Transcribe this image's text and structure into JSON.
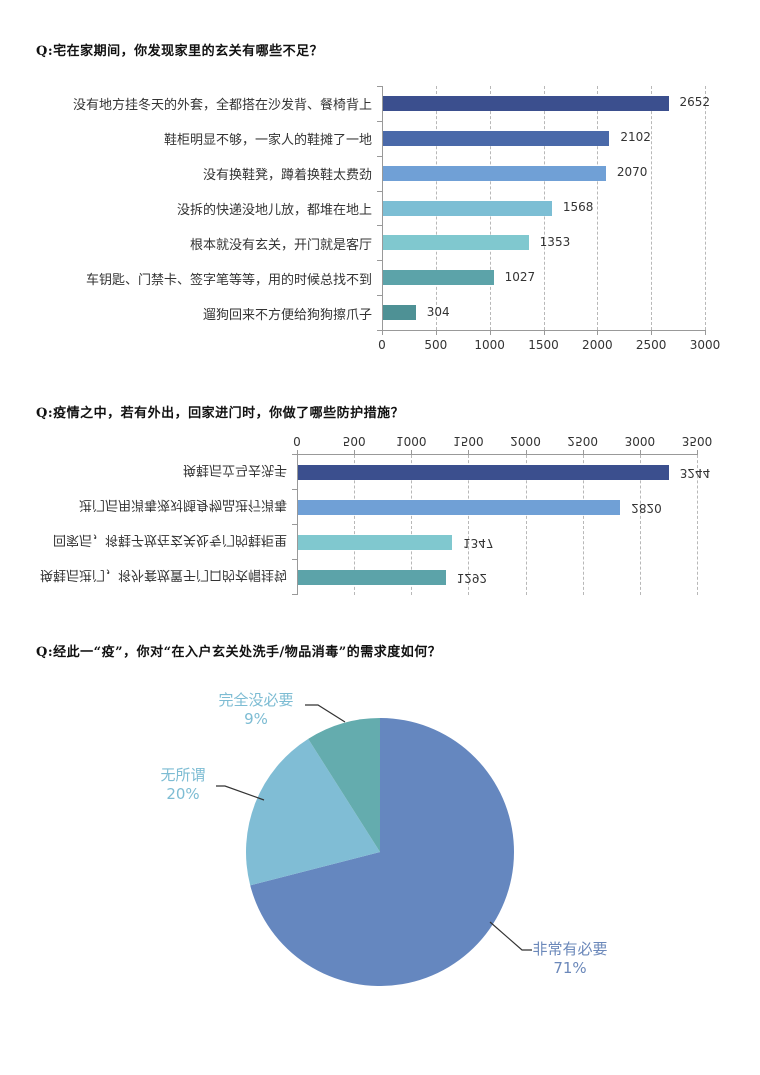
{
  "questions": {
    "q1": "Q:宅在家期间，你发现家里的玄关有哪些不足？",
    "q2": "Q:疫情之中，若有外出，回家进门时，你做了哪些防护措施？",
    "q3": "Q:经此一“疫”，你对“在入户玄关处洗手/物品消毒”的需求度如何？"
  },
  "chart_data": [
    {
      "type": "bar",
      "orientation": "horizontal",
      "title": "Q:宅在家期间，你发现家里的玄关有哪些不足？",
      "categories": [
        "没有地方挂冬天的外套，全都搭在沙发背、餐椅背上",
        "鞋柜明显不够，一家人的鞋摊了一地",
        "没有换鞋凳，蹲着换鞋太费劲",
        "没拆的快递没地儿放，都堆在地上",
        "根本就没有玄关，开门就是客厅",
        "车钥匙、门禁卡、签字笔等等，用的时候总找不到",
        "遛狗回来不方便给狗狗擦爪子"
      ],
      "values": [
        2652,
        2102,
        2070,
        1568,
        1353,
        1027,
        304
      ],
      "value_labels": [
        "2652",
        "2102",
        "2070",
        "1568",
        "1353",
        "1027",
        "304"
      ],
      "colors": [
        "#3B4F8E",
        "#4A69A9",
        "#70A0D6",
        "#7CBED4",
        "#80C8CF",
        "#5CA3A9",
        "#4E9195"
      ],
      "xlim": [
        0,
        3000
      ],
      "xticks": [
        "0",
        "500",
        "1000",
        "1500",
        "2000",
        "2500",
        "3000"
      ],
      "grid": true
    },
    {
      "type": "bar",
      "orientation": "horizontal",
      "rendered_flipped_vertically": true,
      "title": "Q:疫情之中，若有外出，回家进门时，你做了哪些防护措施？",
      "categories": [
        "换鞋后进门，将外套放置于门口的衣帽挂钩",
        "回家后，将鞋子放在玄关处专门的鞋柜里",
        "进门后用消毒液对随身物品进行消毒",
        "换鞋后立马去洗手"
      ],
      "values": [
        1292,
        1347,
        2820,
        3244
      ],
      "value_labels": [
        "1292",
        "1347",
        "2820",
        "3244"
      ],
      "colors": [
        "#5CA3A9",
        "#80C8CF",
        "#70A0D6",
        "#3B4F8E"
      ],
      "xlim": [
        0,
        3500
      ],
      "xticks": [
        "0",
        "500",
        "1000",
        "1500",
        "2000",
        "2500",
        "3000",
        "3500"
      ],
      "grid": true
    },
    {
      "type": "pie",
      "title": "Q:经此一“疫”，你对“在入户玄关处洗手/物品消毒”的需求度如何？",
      "categories": [
        "非常有必要",
        "无所谓",
        "完全没必要"
      ],
      "values": [
        71,
        20,
        9
      ],
      "value_labels": [
        "71%",
        "20%",
        "9%"
      ],
      "colors": [
        "#6587BF",
        "#80BDD5",
        "#64ACAE"
      ],
      "label_colors": [
        "#6B88BA",
        "#7DBCD3",
        "#7DBCD3"
      ]
    }
  ]
}
